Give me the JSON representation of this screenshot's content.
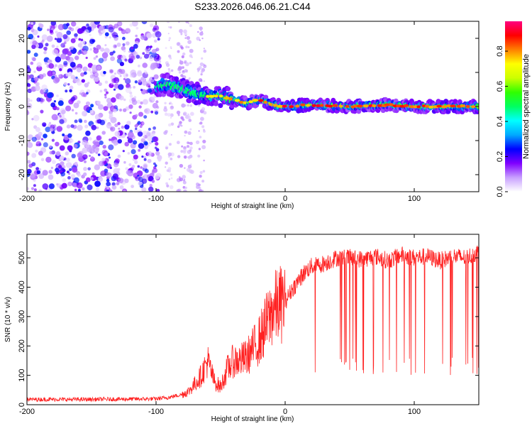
{
  "figure": {
    "title": "S233.2026.046.06.21.C44"
  },
  "chart_data": [
    {
      "type": "heatmap",
      "name": "spectrogram",
      "xlabel": "Height of straight line (km)",
      "ylabel": "Frequency (Hz)",
      "xlim": [
        -200,
        150
      ],
      "ylim": [
        -25,
        25
      ],
      "xticks": [
        -200,
        -100,
        0,
        100
      ],
      "yticks": [
        -20,
        -10,
        0,
        10,
        20
      ],
      "colorbar": {
        "label": "Normalized spectral amplitude",
        "range": [
          0,
          0.97
        ],
        "ticks": [
          0.0,
          0.2,
          0.4,
          0.6,
          0.8
        ],
        "colormap": [
          "#ffffff",
          "#c8a0ff",
          "#8000ff",
          "#0000ff",
          "#00aaff",
          "#00ffff",
          "#00ff60",
          "#30ff00",
          "#ccff00",
          "#ffff00",
          "#ff8000",
          "#ff0000",
          "#ff0080"
        ]
      },
      "ridge": {
        "description_points_x": [
          -100,
          -90,
          -80,
          -70,
          -60,
          -50,
          -40,
          -30,
          -20,
          -10,
          0,
          20,
          50,
          80,
          100,
          150
        ],
        "frequency_hz": [
          6,
          6.5,
          5,
          4,
          3,
          3,
          2,
          1,
          2,
          0.5,
          0,
          0.5,
          0,
          0.5,
          0,
          0
        ]
      },
      "noise_region_x": [
        -200,
        -100
      ]
    },
    {
      "type": "line",
      "name": "snr",
      "xlabel": "Height of straight line (km)",
      "ylabel": "SNR (10 * v/v)",
      "xlim": [
        -200,
        150
      ],
      "ylim": [
        0,
        580
      ],
      "xticks": [
        -200,
        -100,
        0,
        100
      ],
      "yticks": [
        0,
        100,
        200,
        300,
        400,
        500
      ],
      "color": "#ff2020",
      "series": [
        {
          "name": "SNR",
          "x": [
            -200,
            -150,
            -100,
            -90,
            -80,
            -75,
            -70,
            -65,
            -60,
            -55,
            -50,
            -45,
            -40,
            -35,
            -30,
            -25,
            -20,
            -15,
            -10,
            -5,
            0,
            5,
            10,
            15,
            20,
            30,
            40,
            50,
            60,
            70,
            80,
            90,
            100,
            110,
            120,
            130,
            140,
            150
          ],
          "values": [
            18,
            18,
            20,
            25,
            35,
            45,
            70,
            100,
            150,
            80,
            60,
            120,
            150,
            150,
            160,
            190,
            220,
            270,
            320,
            340,
            350,
            390,
            420,
            450,
            470,
            480,
            500,
            500,
            495,
            505,
            490,
            510,
            500,
            505,
            490,
            505,
            500,
            520
          ]
        }
      ]
    }
  ]
}
